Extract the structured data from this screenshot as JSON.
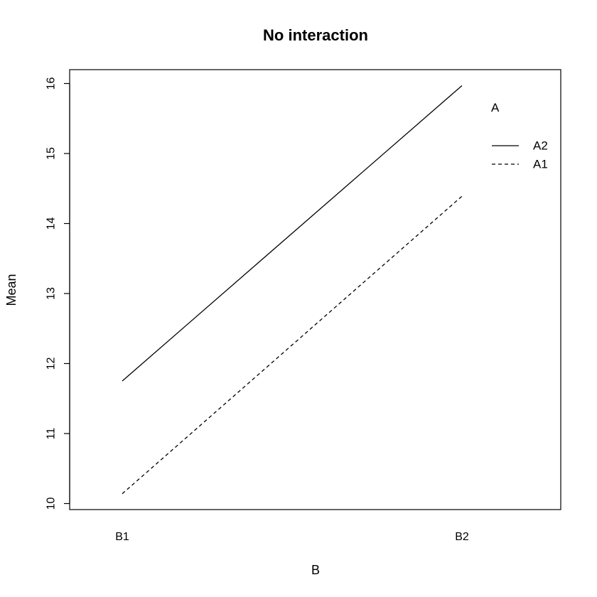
{
  "chart_data": {
    "type": "line",
    "title": "No interaction",
    "xlabel": "B",
    "ylabel": "Mean",
    "categories": [
      "B1",
      "B2"
    ],
    "ylim": [
      10,
      16
    ],
    "yticks": [
      10,
      11,
      12,
      13,
      14,
      15,
      16
    ],
    "legend": {
      "title": "A",
      "placement": "top-right"
    },
    "series": [
      {
        "name": "A2",
        "values": [
          11.75,
          15.97
        ],
        "line_style": "solid",
        "color": "#000000"
      },
      {
        "name": "A1",
        "values": [
          10.14,
          14.39
        ],
        "line_style": "dashed",
        "color": "#000000"
      }
    ],
    "grid": false
  }
}
